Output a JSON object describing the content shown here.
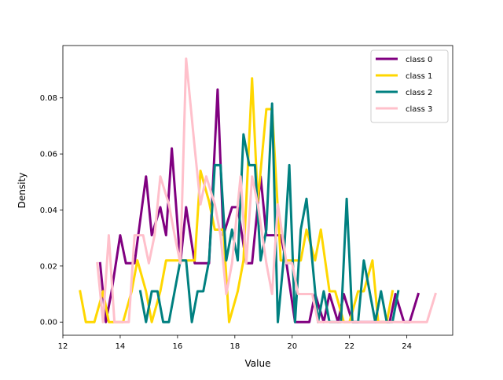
{
  "chart_data": {
    "type": "line",
    "title": "",
    "xlabel": "Value",
    "ylabel": "Density",
    "xlim": [
      12.0,
      25.6
    ],
    "ylim": [
      -0.0047,
      0.0987
    ],
    "xticks": [
      12,
      14,
      16,
      18,
      20,
      22,
      24
    ],
    "yticks": [
      0.0,
      0.02,
      0.04,
      0.06,
      0.08
    ],
    "ytick_labels": [
      "0.00",
      "0.02",
      "0.04",
      "0.06",
      "0.08"
    ],
    "grid": false,
    "legend_position": "top-right",
    "series": [
      {
        "name": "class 0",
        "color": "#800080",
        "x": [
          13.3,
          13.5,
          13.7,
          14.0,
          14.2,
          14.5,
          14.9,
          15.1,
          15.4,
          15.6,
          15.8,
          16.1,
          16.3,
          16.6,
          16.8,
          17.1,
          17.4,
          17.6,
          17.9,
          18.1,
          18.4,
          18.6,
          18.9,
          19.1,
          19.3,
          19.6,
          19.8,
          20.1,
          20.3,
          20.6,
          20.8,
          21.1,
          21.3,
          21.6,
          21.8,
          22.1,
          22.4,
          22.6,
          22.9,
          23.1,
          23.4,
          23.6,
          23.9,
          24.1,
          24.4
        ],
        "y": [
          0.021,
          0.0,
          0.011,
          0.031,
          0.021,
          0.021,
          0.052,
          0.031,
          0.041,
          0.031,
          0.062,
          0.021,
          0.041,
          0.021,
          0.021,
          0.021,
          0.083,
          0.031,
          0.041,
          0.041,
          0.021,
          0.021,
          0.052,
          0.031,
          0.031,
          0.031,
          0.021,
          0.0,
          0.0,
          0.0,
          0.01,
          0.0,
          0.01,
          0.0,
          0.01,
          0.0,
          0.0,
          0.0,
          0.0,
          0.0,
          0.0,
          0.01,
          0.0,
          0.0,
          0.01
        ]
      },
      {
        "name": "class 1",
        "color": "#FFD700",
        "x": [
          12.6,
          12.8,
          13.1,
          13.4,
          13.6,
          13.9,
          14.1,
          14.4,
          14.6,
          14.9,
          15.1,
          15.4,
          15.6,
          15.9,
          16.1,
          16.3,
          16.6,
          16.8,
          17.1,
          17.3,
          17.6,
          17.8,
          18.1,
          18.3,
          18.6,
          18.8,
          19.1,
          19.3,
          19.6,
          19.8,
          20.0,
          20.3,
          20.5,
          20.8,
          21.0,
          21.3,
          21.5,
          21.8,
          22.0,
          22.3,
          22.5,
          22.8,
          23.0,
          23.3,
          23.5
        ],
        "y": [
          0.011,
          0.0,
          0.0,
          0.011,
          0.0,
          0.0,
          0.0,
          0.011,
          0.022,
          0.011,
          0.0,
          0.011,
          0.022,
          0.022,
          0.022,
          0.022,
          0.022,
          0.054,
          0.043,
          0.033,
          0.033,
          0.0,
          0.011,
          0.022,
          0.087,
          0.043,
          0.076,
          0.076,
          0.022,
          0.022,
          0.022,
          0.022,
          0.033,
          0.022,
          0.033,
          0.011,
          0.011,
          0.0,
          0.0,
          0.011,
          0.011,
          0.022,
          0.0,
          0.0,
          0.011
        ]
      },
      {
        "name": "class 2",
        "color": "#008080",
        "x": [
          14.7,
          14.9,
          15.1,
          15.3,
          15.5,
          15.7,
          15.9,
          16.1,
          16.3,
          16.5,
          16.7,
          16.9,
          17.1,
          17.3,
          17.5,
          17.7,
          17.9,
          18.1,
          18.3,
          18.5,
          18.7,
          18.9,
          19.1,
          19.3,
          19.5,
          19.7,
          19.9,
          20.1,
          20.3,
          20.5,
          20.7,
          20.9,
          21.1,
          21.3,
          21.5,
          21.7,
          21.9,
          22.1,
          22.3,
          22.5,
          22.7,
          22.9,
          23.1,
          23.3,
          23.5,
          23.7
        ],
        "y": [
          0.011,
          0.0,
          0.011,
          0.011,
          0.0,
          0.0,
          0.011,
          0.022,
          0.022,
          0.0,
          0.011,
          0.011,
          0.022,
          0.056,
          0.056,
          0.022,
          0.033,
          0.022,
          0.067,
          0.056,
          0.056,
          0.022,
          0.033,
          0.078,
          0.0,
          0.022,
          0.056,
          0.0,
          0.033,
          0.044,
          0.022,
          0.0,
          0.011,
          0.0,
          0.0,
          0.0,
          0.044,
          0.0,
          0.0,
          0.022,
          0.011,
          0.0,
          0.011,
          0.0,
          0.0,
          0.011
        ]
      },
      {
        "name": "class 3",
        "color": "#FFC0CB",
        "x": [
          13.2,
          13.4,
          13.6,
          13.8,
          14.1,
          14.3,
          14.5,
          14.8,
          15.0,
          15.2,
          15.4,
          15.7,
          15.9,
          16.1,
          16.3,
          16.6,
          16.8,
          17.0,
          17.3,
          17.5,
          17.7,
          17.9,
          18.2,
          18.4,
          18.6,
          18.8,
          19.1,
          19.3,
          19.5,
          19.8,
          20.0,
          20.2,
          20.4,
          20.7,
          20.9,
          21.1,
          21.3,
          21.6,
          21.8,
          22.0,
          22.3,
          22.5,
          22.7,
          22.9,
          23.2,
          23.4,
          23.6,
          23.8,
          24.1,
          24.3,
          24.5,
          24.7,
          25.0
        ],
        "y": [
          0.021,
          0.0,
          0.031,
          0.0,
          0.0,
          0.0,
          0.031,
          0.031,
          0.021,
          0.031,
          0.052,
          0.042,
          0.031,
          0.021,
          0.094,
          0.062,
          0.042,
          0.052,
          0.042,
          0.031,
          0.01,
          0.021,
          0.052,
          0.021,
          0.052,
          0.042,
          0.021,
          0.01,
          0.042,
          0.021,
          0.021,
          0.01,
          0.01,
          0.01,
          0.0,
          0.0,
          0.0,
          0.0,
          0.0,
          0.0,
          0.0,
          0.0,
          0.0,
          0.0,
          0.0,
          0.0,
          0.0,
          0.0,
          0.0,
          0.0,
          0.0,
          0.0,
          0.01
        ]
      }
    ]
  }
}
